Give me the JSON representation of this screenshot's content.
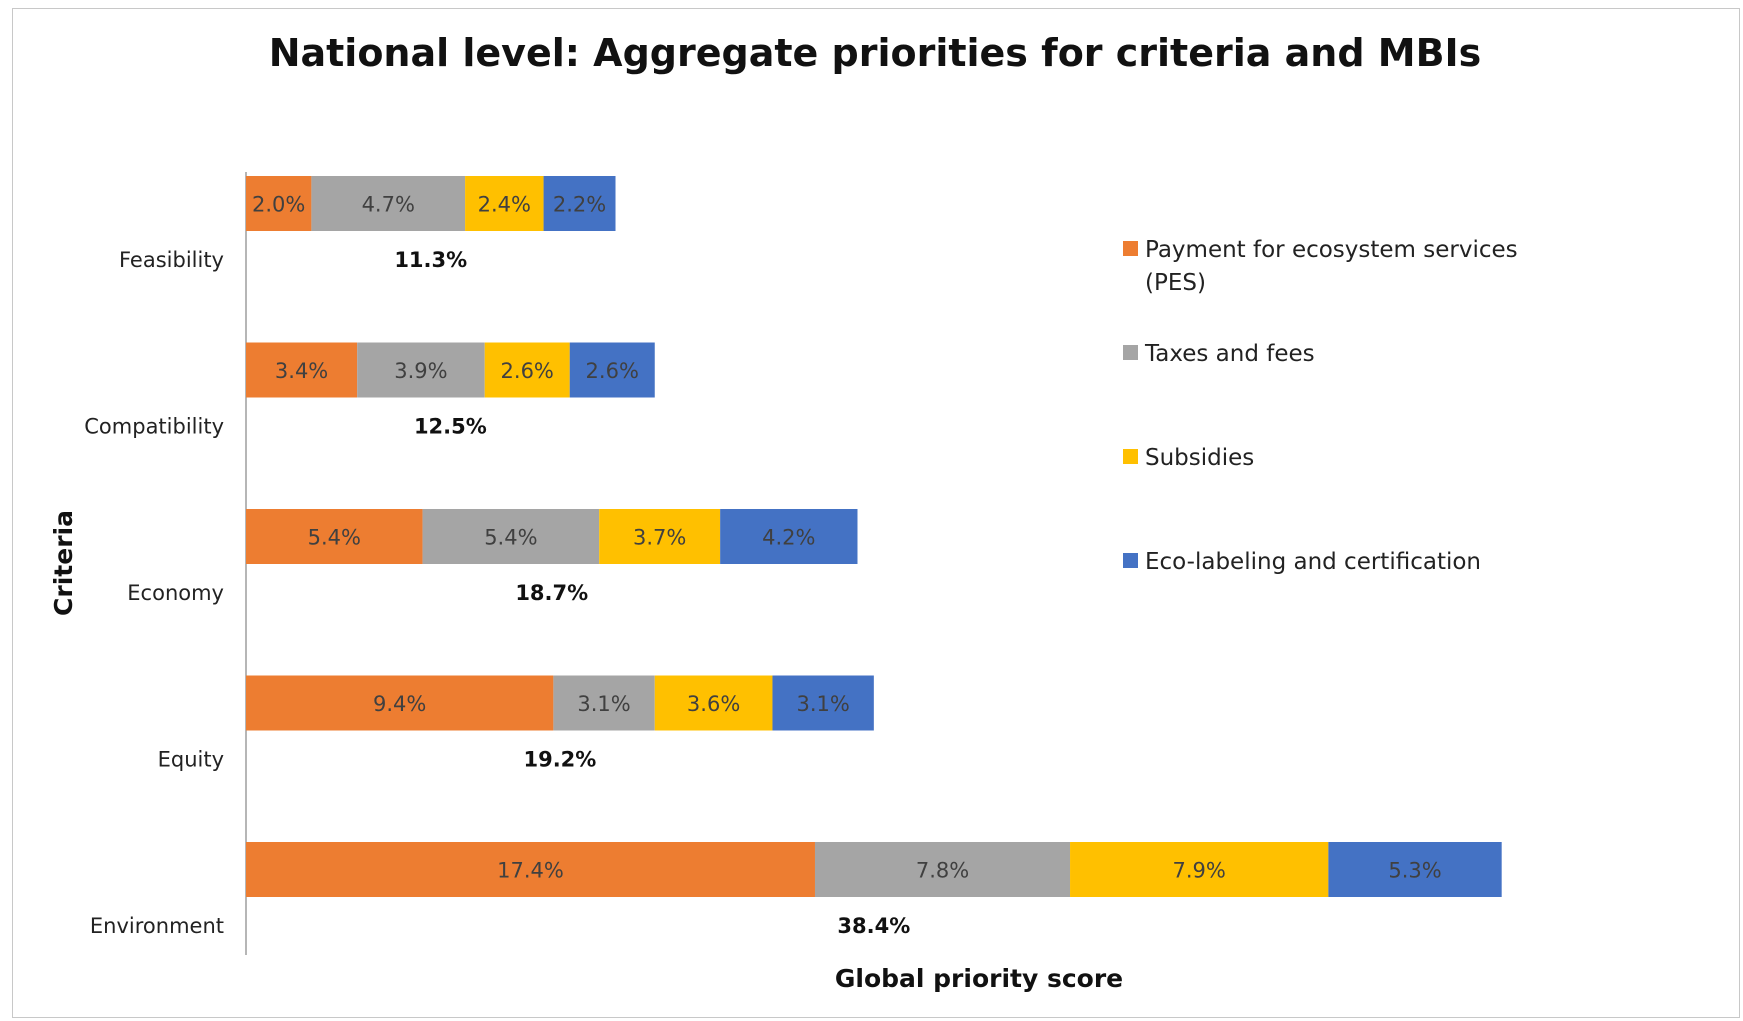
{
  "chart_data": {
    "type": "bar",
    "orientation": "horizontal",
    "stacked": true,
    "title": "National level: Aggregate priorities for criteria and MBIs",
    "xlabel": "Global priority score",
    "ylabel": "Criteria",
    "categories": [
      "Feasibility",
      "Compatibility",
      "Economy",
      "Equity",
      "Environment"
    ],
    "series": [
      {
        "name": "Payment for ecosystem services (PES)",
        "color": "#ED7D31",
        "values": [
          2.0,
          3.4,
          5.4,
          9.4,
          17.4
        ],
        "labels": [
          "2.0%",
          "3.4%",
          "5.4%",
          "9.4%",
          "17.4%"
        ]
      },
      {
        "name": "Taxes and fees",
        "color": "#A5A5A5",
        "values": [
          4.7,
          3.9,
          5.4,
          3.1,
          7.8
        ],
        "labels": [
          "4.7%",
          "3.9%",
          "5.4%",
          "3.1%",
          "7.8%"
        ]
      },
      {
        "name": "Subsidies",
        "color": "#FFC000",
        "values": [
          2.4,
          2.6,
          3.7,
          3.6,
          7.9
        ],
        "labels": [
          "2.4%",
          "2.6%",
          "3.7%",
          "3.6%",
          "7.9%"
        ]
      },
      {
        "name": "Eco-labeling and certification",
        "color": "#4472C4",
        "values": [
          2.2,
          2.6,
          4.2,
          3.1,
          5.3
        ],
        "labels": [
          "2.2%",
          "2.6%",
          "4.2%",
          "3.1%",
          "5.3%"
        ]
      }
    ],
    "totals": [
      11.3,
      12.5,
      18.7,
      19.2,
      38.4
    ],
    "total_labels": [
      "11.3%",
      "12.5%",
      "18.7%",
      "19.2%",
      "38.4%"
    ],
    "legend": {
      "position": "right",
      "entries": [
        [
          "Payment for ecosystem services",
          "(PES)"
        ],
        [
          "Taxes and fees"
        ],
        [
          "Subsidies"
        ],
        [
          "Eco-labeling and certification"
        ]
      ]
    },
    "grid": false
  }
}
